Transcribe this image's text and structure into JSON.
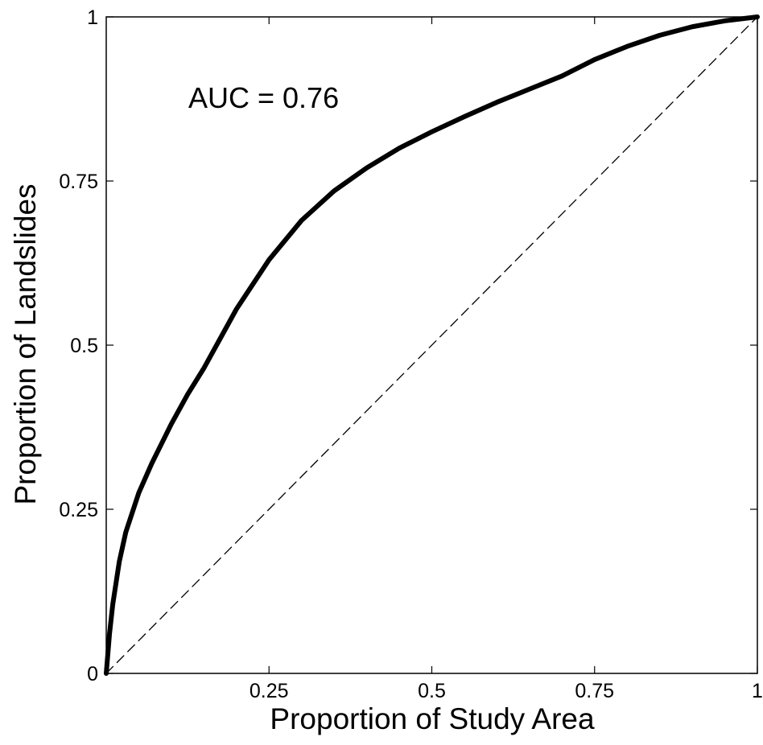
{
  "chart_data": {
    "type": "line",
    "title": "",
    "xlabel": "Proportion of Study Area",
    "ylabel": "Proportion of Landslides",
    "xlim": [
      0,
      1
    ],
    "ylim": [
      0,
      1
    ],
    "x_ticks": [
      {
        "value": 0.25,
        "label": "0.25"
      },
      {
        "value": 0.5,
        "label": "0.5"
      },
      {
        "value": 0.75,
        "label": "0.75"
      },
      {
        "value": 1,
        "label": "1"
      }
    ],
    "y_ticks": [
      {
        "value": 0,
        "label": "0"
      },
      {
        "value": 0.25,
        "label": "0.25"
      },
      {
        "value": 0.5,
        "label": "0.5"
      },
      {
        "value": 0.75,
        "label": "0.75"
      },
      {
        "value": 1,
        "label": "1"
      }
    ],
    "grid": false,
    "annotation": "AUC = 0.76",
    "series": [
      {
        "style": "solid-thick",
        "color": "#000000",
        "x": [
          0,
          0.005,
          0.01,
          0.02,
          0.03,
          0.05,
          0.07,
          0.1,
          0.125,
          0.15,
          0.2,
          0.25,
          0.3,
          0.35,
          0.4,
          0.45,
          0.5,
          0.55,
          0.6,
          0.65,
          0.7,
          0.75,
          0.8,
          0.85,
          0.9,
          0.95,
          1.0
        ],
        "y": [
          0,
          0.06,
          0.105,
          0.17,
          0.215,
          0.275,
          0.32,
          0.38,
          0.425,
          0.465,
          0.555,
          0.63,
          0.69,
          0.735,
          0.77,
          0.8,
          0.825,
          0.848,
          0.87,
          0.89,
          0.91,
          0.935,
          0.955,
          0.972,
          0.985,
          0.994,
          1.0
        ]
      },
      {
        "style": "dashed-thin",
        "color": "#000000",
        "x": [
          0,
          1
        ],
        "y": [
          0,
          1
        ]
      }
    ]
  }
}
